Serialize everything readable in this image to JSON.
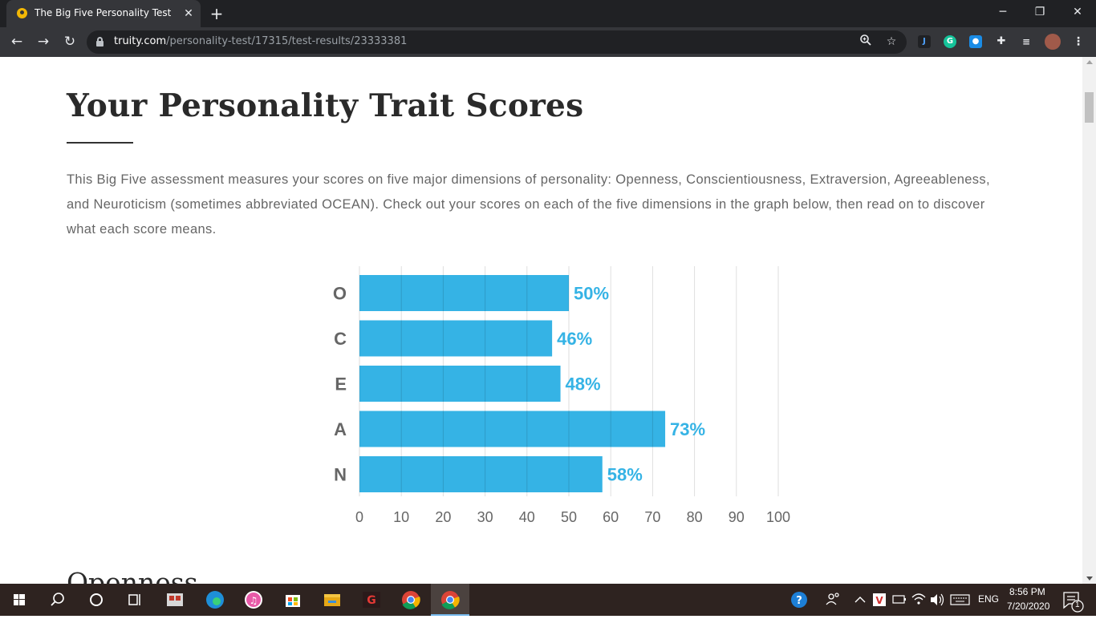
{
  "browser": {
    "tab_title": "The Big Five Personality Test | Truity",
    "tab_close": "✕",
    "new_tab": "+",
    "url_host": "truity.com",
    "url_path": "/personality-test/17315/test-results/23333381",
    "window_minimize": "─",
    "window_restore": "❐",
    "window_close": "✕"
  },
  "page": {
    "heading": "Your Personality Trait Scores",
    "intro": "This Big Five assessment measures your scores on five major dimensions of personality: Openness, Conscientiousness, Extraversion, Agreeableness, and Neuroticism (sometimes abbreviated OCEAN). Check out your scores on each of the five dimensions in the graph below, then read on to discover what each score means.",
    "next_section_heading": "Openness"
  },
  "chart_data": {
    "type": "bar",
    "orientation": "horizontal",
    "categories": [
      "O",
      "C",
      "E",
      "A",
      "N"
    ],
    "values": [
      50,
      46,
      48,
      73,
      58
    ],
    "value_labels": [
      "50%",
      "46%",
      "48%",
      "73%",
      "58%"
    ],
    "xlim": [
      0,
      100
    ],
    "xticks": [
      "0",
      "10",
      "20",
      "30",
      "40",
      "50",
      "60",
      "70",
      "80",
      "90",
      "100"
    ],
    "grid": true,
    "bar_color": "#35b3e5",
    "label_color": "#35b3e5",
    "title": "",
    "xlabel": "",
    "ylabel": ""
  },
  "taskbar": {
    "language": "ENG",
    "time": "8:56 PM",
    "date": "7/20/2020",
    "notification_count": "1"
  },
  "colors": {
    "chrome_dark": "#202124",
    "chrome_toolbar": "#35363a",
    "taskbar": "#2e2320",
    "heading_text": "#2a2a2a",
    "body_text": "#666666"
  }
}
